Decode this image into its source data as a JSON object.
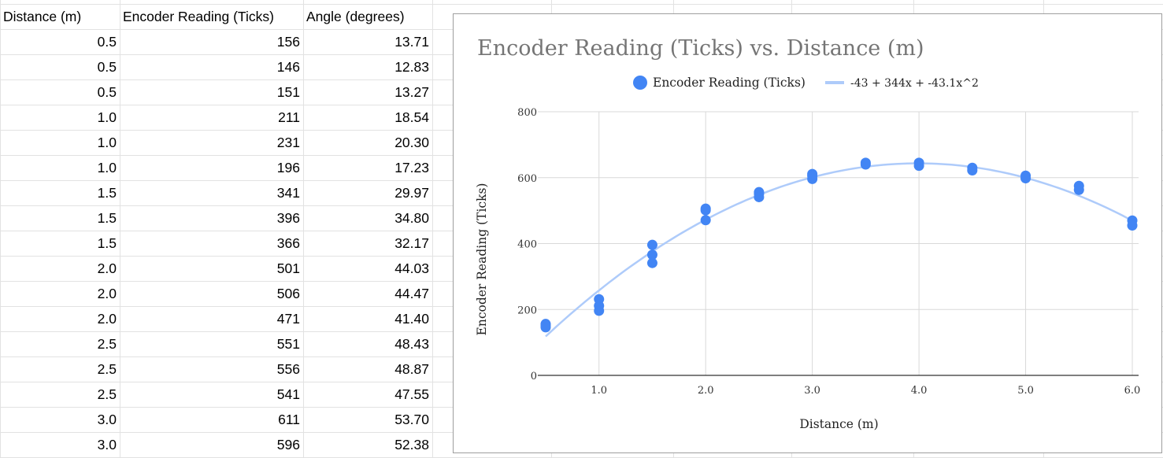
{
  "sheet": {
    "headers": [
      "Distance (m)",
      "Encoder Reading (Ticks)",
      "Angle (degrees)"
    ],
    "rows": [
      [
        "0.5",
        "156",
        "13.71"
      ],
      [
        "0.5",
        "146",
        "12.83"
      ],
      [
        "0.5",
        "151",
        "13.27"
      ],
      [
        "1.0",
        "211",
        "18.54"
      ],
      [
        "1.0",
        "231",
        "20.30"
      ],
      [
        "1.0",
        "196",
        "17.23"
      ],
      [
        "1.5",
        "341",
        "29.97"
      ],
      [
        "1.5",
        "396",
        "34.80"
      ],
      [
        "1.5",
        "366",
        "32.17"
      ],
      [
        "2.0",
        "501",
        "44.03"
      ],
      [
        "2.0",
        "506",
        "44.47"
      ],
      [
        "2.0",
        "471",
        "41.40"
      ],
      [
        "2.5",
        "551",
        "48.43"
      ],
      [
        "2.5",
        "556",
        "48.87"
      ],
      [
        "2.5",
        "541",
        "47.55"
      ],
      [
        "3.0",
        "611",
        "53.70"
      ],
      [
        "3.0",
        "596",
        "52.38"
      ]
    ]
  },
  "chart_data": {
    "type": "scatter",
    "title": "Encoder Reading (Ticks) vs. Distance (m)",
    "xlabel": "Distance (m)",
    "ylabel": "Encoder Reading (Ticks)",
    "xlim": [
      0.5,
      6.0
    ],
    "ylim": [
      0,
      800
    ],
    "x_ticks": [
      1.0,
      2.0,
      3.0,
      4.0,
      5.0,
      6.0
    ],
    "x_tick_labels": [
      "1.0",
      "2.0",
      "3.0",
      "4.0",
      "5.0",
      "6.0"
    ],
    "y_ticks": [
      0,
      200,
      400,
      600,
      800
    ],
    "y_tick_labels": [
      "0",
      "200",
      "400",
      "600",
      "800"
    ],
    "grid": true,
    "legend_position": "top-center",
    "series": [
      {
        "name": "Encoder Reading (Ticks)",
        "color": "#4285f4",
        "x": [
          0.5,
          0.5,
          0.5,
          1.0,
          1.0,
          1.0,
          1.5,
          1.5,
          1.5,
          2.0,
          2.0,
          2.0,
          2.5,
          2.5,
          2.5,
          3.0,
          3.0,
          3.0,
          3.5,
          3.5,
          4.0,
          4.0,
          4.5,
          4.5,
          5.0,
          5.0,
          5.5,
          5.5,
          6.0,
          6.0
        ],
        "y": [
          156,
          146,
          151,
          211,
          231,
          196,
          341,
          396,
          366,
          501,
          506,
          471,
          551,
          556,
          541,
          611,
          596,
          605,
          645,
          640,
          645,
          636,
          630,
          622,
          606,
          598,
          575,
          563,
          470,
          455
        ]
      }
    ],
    "trendline": {
      "name": "-43 + 344x + -43.1x^2",
      "color": "#aecbfa",
      "coefficients": [
        -43,
        344,
        -43.1
      ]
    }
  }
}
